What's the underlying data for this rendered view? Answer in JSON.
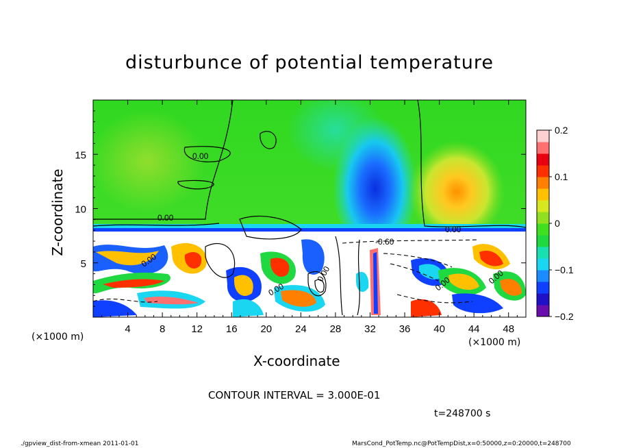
{
  "chart_data": {
    "type": "heatmap",
    "title": "disturbunce of potential temperature",
    "xlabel": "X-coordinate",
    "ylabel": "Z-coordinate",
    "x_unit_label_left": "(×1000 m)",
    "x_unit_label_right": "(×1000 m)",
    "xlim": [
      0,
      50
    ],
    "ylim": [
      0,
      20
    ],
    "x_ticks": [
      4,
      8,
      12,
      16,
      20,
      24,
      28,
      32,
      36,
      40,
      44,
      48
    ],
    "y_ticks": [
      5,
      10,
      15
    ],
    "colorbar": {
      "min": -0.2,
      "max": 0.2,
      "ticks": [
        -0.2,
        -0.1,
        0,
        0.1,
        0.2
      ],
      "tick_labels": [
        "−0.2",
        "−0.1",
        "0",
        "0.1",
        "0.2"
      ],
      "colors": [
        "#6a0dad",
        "#2010c8",
        "#1040ff",
        "#1a8cff",
        "#1ad6f0",
        "#18e0b0",
        "#20d840",
        "#40e020",
        "#90e020",
        "#d8e820",
        "#ffc000",
        "#ff8000",
        "#ff3000",
        "#e80010",
        "#ff7070",
        "#ffd0d0"
      ]
    },
    "contour_labels": [
      "0.00",
      "0.00",
      "0.00",
      "-0.60",
      "0.00",
      "0.00",
      "0.00",
      "0.00",
      "0.00"
    ],
    "contour_interval": "CONTOUR INTERVAL = 3.000E-01",
    "time": "t=248700 s",
    "regions": [
      {
        "desc": "upper atmosphere background",
        "x": [
          0,
          50
        ],
        "z": [
          8,
          20
        ],
        "value": 0.0
      },
      {
        "desc": "cold column",
        "x": [
          27,
          36
        ],
        "z": [
          7.5,
          19
        ],
        "value": -0.09
      },
      {
        "desc": "warm column",
        "x": [
          38,
          48
        ],
        "z": [
          8,
          16
        ],
        "value": 0.09
      },
      {
        "desc": "cool strip",
        "x": [
          0,
          50
        ],
        "z": [
          7.3,
          8
        ],
        "value": -0.11
      },
      {
        "desc": "turbulent boundary layer",
        "x": [
          0,
          50
        ],
        "z": [
          0,
          7.3
        ],
        "value": "mixed ±0.2"
      }
    ]
  },
  "footer": {
    "left": "./gpview_dist-from-xmean 2011-01-01",
    "right": "MarsCond_PotTemp.nc@PotTempDist,x=0:50000,z=0:20000,t=248700"
  }
}
